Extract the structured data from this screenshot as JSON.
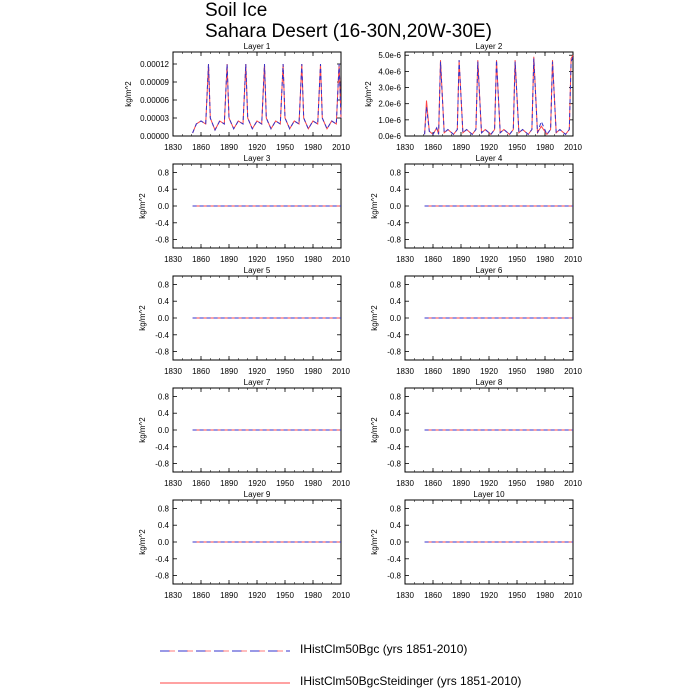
{
  "title": "Soil Ice",
  "subtitle": "Sahara Desert (16-30N,20W-30E)",
  "legend": [
    {
      "label": "IHistClm50Bgc (yrs 1851-2010)",
      "color": "#3333cc",
      "style": "dashed"
    },
    {
      "label": "IHistClm50BgcSteidinger (yrs 1851-2010)",
      "color": "#ff4444",
      "style": "solid"
    }
  ],
  "chart_data": [
    {
      "type": "line",
      "title": "Layer 1",
      "ylabel": "kg/m^2",
      "xlim": [
        1830,
        2010
      ],
      "ylim": [
        0,
        0.00014
      ],
      "xticks": [
        "1830",
        "1860",
        "1890",
        "1920",
        "1950",
        "1980",
        "2010"
      ],
      "yticks": [
        "0.00000",
        "0.00003",
        "0.00006",
        "0.00009",
        "0.00012"
      ],
      "x": [
        1851,
        1855,
        1860,
        1865,
        1868,
        1870,
        1875,
        1880,
        1885,
        1888,
        1890,
        1895,
        1900,
        1905,
        1908,
        1910,
        1915,
        1920,
        1925,
        1928,
        1930,
        1935,
        1940,
        1945,
        1948,
        1950,
        1955,
        1960,
        1965,
        1968,
        1970,
        1975,
        1980,
        1985,
        1988,
        1990,
        1995,
        2000,
        2005,
        2008,
        2010
      ],
      "series": [
        {
          "name": "IHistClm50Bgc (yrs 1851-2010)",
          "values": [
            5e-06,
            2e-05,
            2.5e-05,
            2e-05,
            0.00012,
            3e-05,
            1e-05,
            2.5e-05,
            2e-05,
            0.00012,
            3e-05,
            1.2e-05,
            2.5e-05,
            2e-05,
            0.00012,
            3e-05,
            1.2e-05,
            2.5e-05,
            2e-05,
            0.00012,
            3e-05,
            1.2e-05,
            2.5e-05,
            2e-05,
            0.00012,
            3e-05,
            1.2e-05,
            2.5e-05,
            2e-05,
            0.00012,
            3e-05,
            1.2e-05,
            2.5e-05,
            2e-05,
            0.00012,
            3e-05,
            1.2e-05,
            2.5e-05,
            2e-05,
            0.00012,
            3e-05
          ]
        },
        {
          "name": "IHistClm50BgcSteidinger (yrs 1851-2010)",
          "values": [
            5e-06,
            2e-05,
            2.5e-05,
            2e-05,
            0.00012,
            3e-05,
            1e-05,
            2.5e-05,
            2e-05,
            0.00012,
            3e-05,
            1.2e-05,
            2.5e-05,
            2e-05,
            0.00012,
            3e-05,
            1.2e-05,
            2.5e-05,
            2e-05,
            0.00012,
            3e-05,
            1.2e-05,
            2.5e-05,
            2e-05,
            0.00012,
            3e-05,
            1.2e-05,
            2.5e-05,
            2e-05,
            0.00012,
            3e-05,
            1.2e-05,
            2.5e-05,
            2e-05,
            0.00012,
            3e-05,
            1.2e-05,
            2.5e-05,
            2e-05,
            0.00012,
            3e-05
          ]
        }
      ]
    },
    {
      "type": "line",
      "title": "Layer 2",
      "ylabel": "kg/m^2",
      "xlim": [
        1830,
        2010
      ],
      "ylim": [
        0,
        5.2e-06
      ],
      "xticks": [
        "1830",
        "1860",
        "1890",
        "1920",
        "1950",
        "1980",
        "2010"
      ],
      "yticks": [
        "0.0e-6",
        "1.0e-6",
        "2.0e-6",
        "3.0e-6",
        "4.0e-6",
        "5.0e-6"
      ],
      "x": [
        1851,
        1853,
        1856,
        1860,
        1864,
        1866,
        1868,
        1872,
        1876,
        1882,
        1886,
        1888,
        1892,
        1896,
        1902,
        1906,
        1908,
        1912,
        1916,
        1922,
        1926,
        1928,
        1932,
        1936,
        1942,
        1946,
        1948,
        1952,
        1956,
        1962,
        1966,
        1968,
        1972,
        1976,
        1982,
        1986,
        1988,
        1992,
        1996,
        2002,
        2006,
        2008,
        2010
      ],
      "series": [
        {
          "name": "IHistClm50Bgc (yrs 1851-2010)",
          "values": [
            1e-07,
            1.8e-06,
            3e-07,
            1e-07,
            5e-07,
            1e-07,
            4.6e-06,
            2e-07,
            4e-07,
            1e-07,
            4e-07,
            4.7e-06,
            2e-07,
            4e-07,
            1e-07,
            4e-07,
            4.6e-06,
            2e-07,
            4e-07,
            1e-07,
            4e-07,
            4.7e-06,
            2e-07,
            4e-07,
            1e-07,
            4e-07,
            4.6e-06,
            2e-07,
            4e-07,
            1e-07,
            4e-07,
            4.8e-06,
            2e-07,
            9e-07,
            1e-07,
            4e-07,
            4.6e-06,
            2e-07,
            4e-07,
            1e-07,
            4e-07,
            4.6e-06,
            4.9e-06
          ]
        },
        {
          "name": "IHistClm50BgcSteidinger (yrs 1851-2010)",
          "values": [
            1e-07,
            2.2e-06,
            3e-07,
            1e-07,
            5e-07,
            1e-07,
            4.7e-06,
            2e-07,
            4e-07,
            1e-07,
            4e-07,
            4.7e-06,
            2e-07,
            4e-07,
            1e-07,
            4e-07,
            4.7e-06,
            2e-07,
            4e-07,
            1e-07,
            4e-07,
            4.7e-06,
            2e-07,
            4e-07,
            1e-07,
            4e-07,
            4.7e-06,
            2e-07,
            4e-07,
            1e-07,
            4e-07,
            4.9e-06,
            2e-07,
            6e-07,
            1e-07,
            4e-07,
            4.7e-06,
            2e-07,
            4e-07,
            1e-07,
            4e-07,
            4.8e-06,
            5e-06
          ]
        }
      ]
    },
    {
      "type": "line",
      "title": "Layer 3",
      "ylabel": "kg/m^2",
      "xlim": [
        1830,
        2010
      ],
      "ylim": [
        -1,
        1
      ],
      "xticks": [
        "1830",
        "1860",
        "1890",
        "1920",
        "1950",
        "1980",
        "2010"
      ],
      "yticks": [
        "0.8",
        "0.4",
        "0.0",
        "-0.4",
        "-0.8"
      ],
      "x": [
        1851,
        2010
      ],
      "series": [
        {
          "name": "IHistClm50Bgc (yrs 1851-2010)",
          "values": [
            0,
            0
          ]
        },
        {
          "name": "IHistClm50BgcSteidinger (yrs 1851-2010)",
          "values": [
            0,
            0
          ]
        }
      ]
    },
    {
      "type": "line",
      "title": "Layer 4",
      "ylabel": "kg/m^2",
      "xlim": [
        1830,
        2010
      ],
      "ylim": [
        -1,
        1
      ],
      "xticks": [
        "1830",
        "1860",
        "1890",
        "1920",
        "1950",
        "1980",
        "2010"
      ],
      "yticks": [
        "0.8",
        "0.4",
        "0.0",
        "-0.4",
        "-0.8"
      ],
      "x": [
        1851,
        2010
      ],
      "series": [
        {
          "name": "IHistClm50Bgc (yrs 1851-2010)",
          "values": [
            0,
            0
          ]
        },
        {
          "name": "IHistClm50BgcSteidinger (yrs 1851-2010)",
          "values": [
            0,
            0
          ]
        }
      ]
    },
    {
      "type": "line",
      "title": "Layer 5",
      "ylabel": "kg/m^2",
      "xlim": [
        1830,
        2010
      ],
      "ylim": [
        -1,
        1
      ],
      "xticks": [
        "1830",
        "1860",
        "1890",
        "1920",
        "1950",
        "1980",
        "2010"
      ],
      "yticks": [
        "0.8",
        "0.4",
        "0.0",
        "-0.4",
        "-0.8"
      ],
      "x": [
        1851,
        2010
      ],
      "series": [
        {
          "name": "IHistClm50Bgc (yrs 1851-2010)",
          "values": [
            0,
            0
          ]
        },
        {
          "name": "IHistClm50BgcSteidinger (yrs 1851-2010)",
          "values": [
            0,
            0
          ]
        }
      ]
    },
    {
      "type": "line",
      "title": "Layer 6",
      "ylabel": "kg/m^2",
      "xlim": [
        1830,
        2010
      ],
      "ylim": [
        -1,
        1
      ],
      "xticks": [
        "1830",
        "1860",
        "1890",
        "1920",
        "1950",
        "1980",
        "2010"
      ],
      "yticks": [
        "0.8",
        "0.4",
        "0.0",
        "-0.4",
        "-0.8"
      ],
      "x": [
        1851,
        2010
      ],
      "series": [
        {
          "name": "IHistClm50Bgc (yrs 1851-2010)",
          "values": [
            0,
            0
          ]
        },
        {
          "name": "IHistClm50BgcSteidinger (yrs 1851-2010)",
          "values": [
            0,
            0
          ]
        }
      ]
    },
    {
      "type": "line",
      "title": "Layer 7",
      "ylabel": "kg/m^2",
      "xlim": [
        1830,
        2010
      ],
      "ylim": [
        -1,
        1
      ],
      "xticks": [
        "1830",
        "1860",
        "1890",
        "1920",
        "1950",
        "1980",
        "2010"
      ],
      "yticks": [
        "0.8",
        "0.4",
        "0.0",
        "-0.4",
        "-0.8"
      ],
      "x": [
        1851,
        2010
      ],
      "series": [
        {
          "name": "IHistClm50Bgc (yrs 1851-2010)",
          "values": [
            0,
            0
          ]
        },
        {
          "name": "IHistClm50BgcSteidinger (yrs 1851-2010)",
          "values": [
            0,
            0
          ]
        }
      ]
    },
    {
      "type": "line",
      "title": "Layer 8",
      "ylabel": "kg/m^2",
      "xlim": [
        1830,
        2010
      ],
      "ylim": [
        -1,
        1
      ],
      "xticks": [
        "1830",
        "1860",
        "1890",
        "1920",
        "1950",
        "1980",
        "2010"
      ],
      "yticks": [
        "0.8",
        "0.4",
        "0.0",
        "-0.4",
        "-0.8"
      ],
      "x": [
        1851,
        2010
      ],
      "series": [
        {
          "name": "IHistClm50Bgc (yrs 1851-2010)",
          "values": [
            0,
            0
          ]
        },
        {
          "name": "IHistClm50BgcSteidinger (yrs 1851-2010)",
          "values": [
            0,
            0
          ]
        }
      ]
    },
    {
      "type": "line",
      "title": "Layer 9",
      "ylabel": "kg/m^2",
      "xlim": [
        1830,
        2010
      ],
      "ylim": [
        -1,
        1
      ],
      "xticks": [
        "1830",
        "1860",
        "1890",
        "1920",
        "1950",
        "1980",
        "2010"
      ],
      "yticks": [
        "0.8",
        "0.4",
        "0.0",
        "-0.4",
        "-0.8"
      ],
      "x": [
        1851,
        2010
      ],
      "series": [
        {
          "name": "IHistClm50Bgc (yrs 1851-2010)",
          "values": [
            0,
            0
          ]
        },
        {
          "name": "IHistClm50BgcSteidinger (yrs 1851-2010)",
          "values": [
            0,
            0
          ]
        }
      ]
    },
    {
      "type": "line",
      "title": "Layer 10",
      "ylabel": "kg/m^2",
      "xlim": [
        1830,
        2010
      ],
      "ylim": [
        -1,
        1
      ],
      "xticks": [
        "1830",
        "1860",
        "1890",
        "1920",
        "1950",
        "1980",
        "2010"
      ],
      "yticks": [
        "0.8",
        "0.4",
        "0.0",
        "-0.4",
        "-0.8"
      ],
      "x": [
        1851,
        2010
      ],
      "series": [
        {
          "name": "IHistClm50Bgc (yrs 1851-2010)",
          "values": [
            0,
            0
          ]
        },
        {
          "name": "IHistClm50BgcSteidinger (yrs 1851-2010)",
          "values": [
            0,
            0
          ]
        }
      ]
    }
  ]
}
